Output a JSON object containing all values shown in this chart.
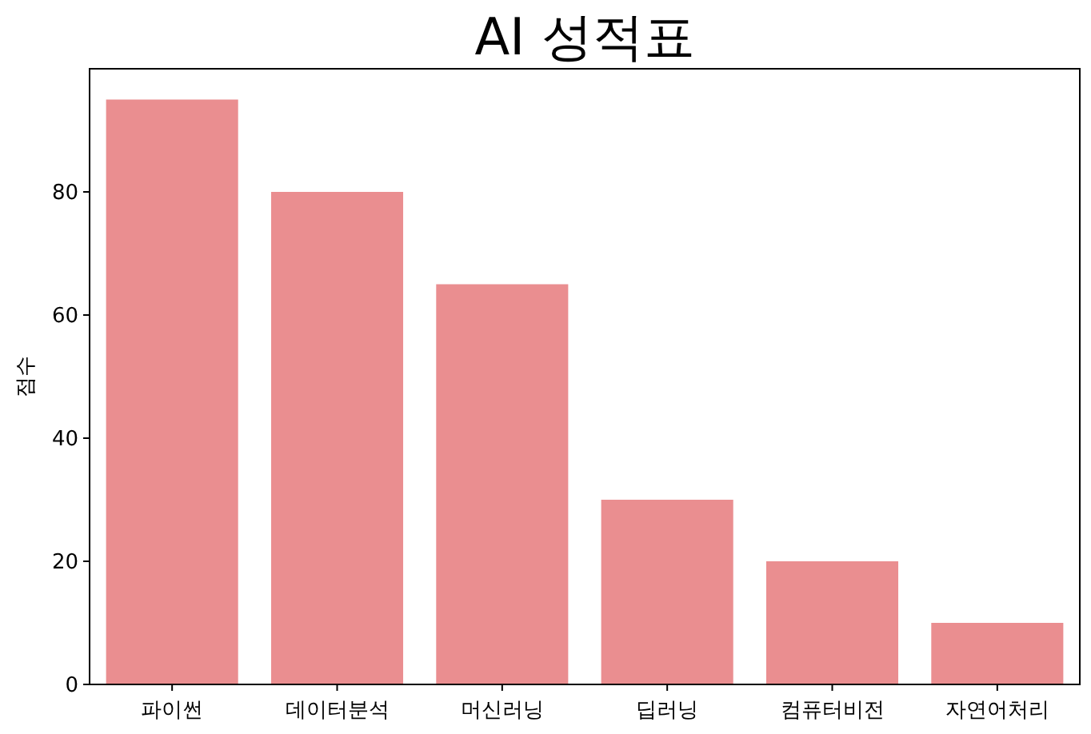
{
  "chart_data": {
    "type": "bar",
    "title": "AI 성적표",
    "ylabel": "점수",
    "categories": [
      "파이썬",
      "데이터분석",
      "머신러닝",
      "딥러닝",
      "컴퓨터비전",
      "자연어처리"
    ],
    "values": [
      95,
      80,
      65,
      30,
      20,
      10
    ],
    "color": "#ea8e90",
    "ylim": [
      0,
      100
    ],
    "yticks": [
      0,
      20,
      40,
      60,
      80
    ]
  }
}
